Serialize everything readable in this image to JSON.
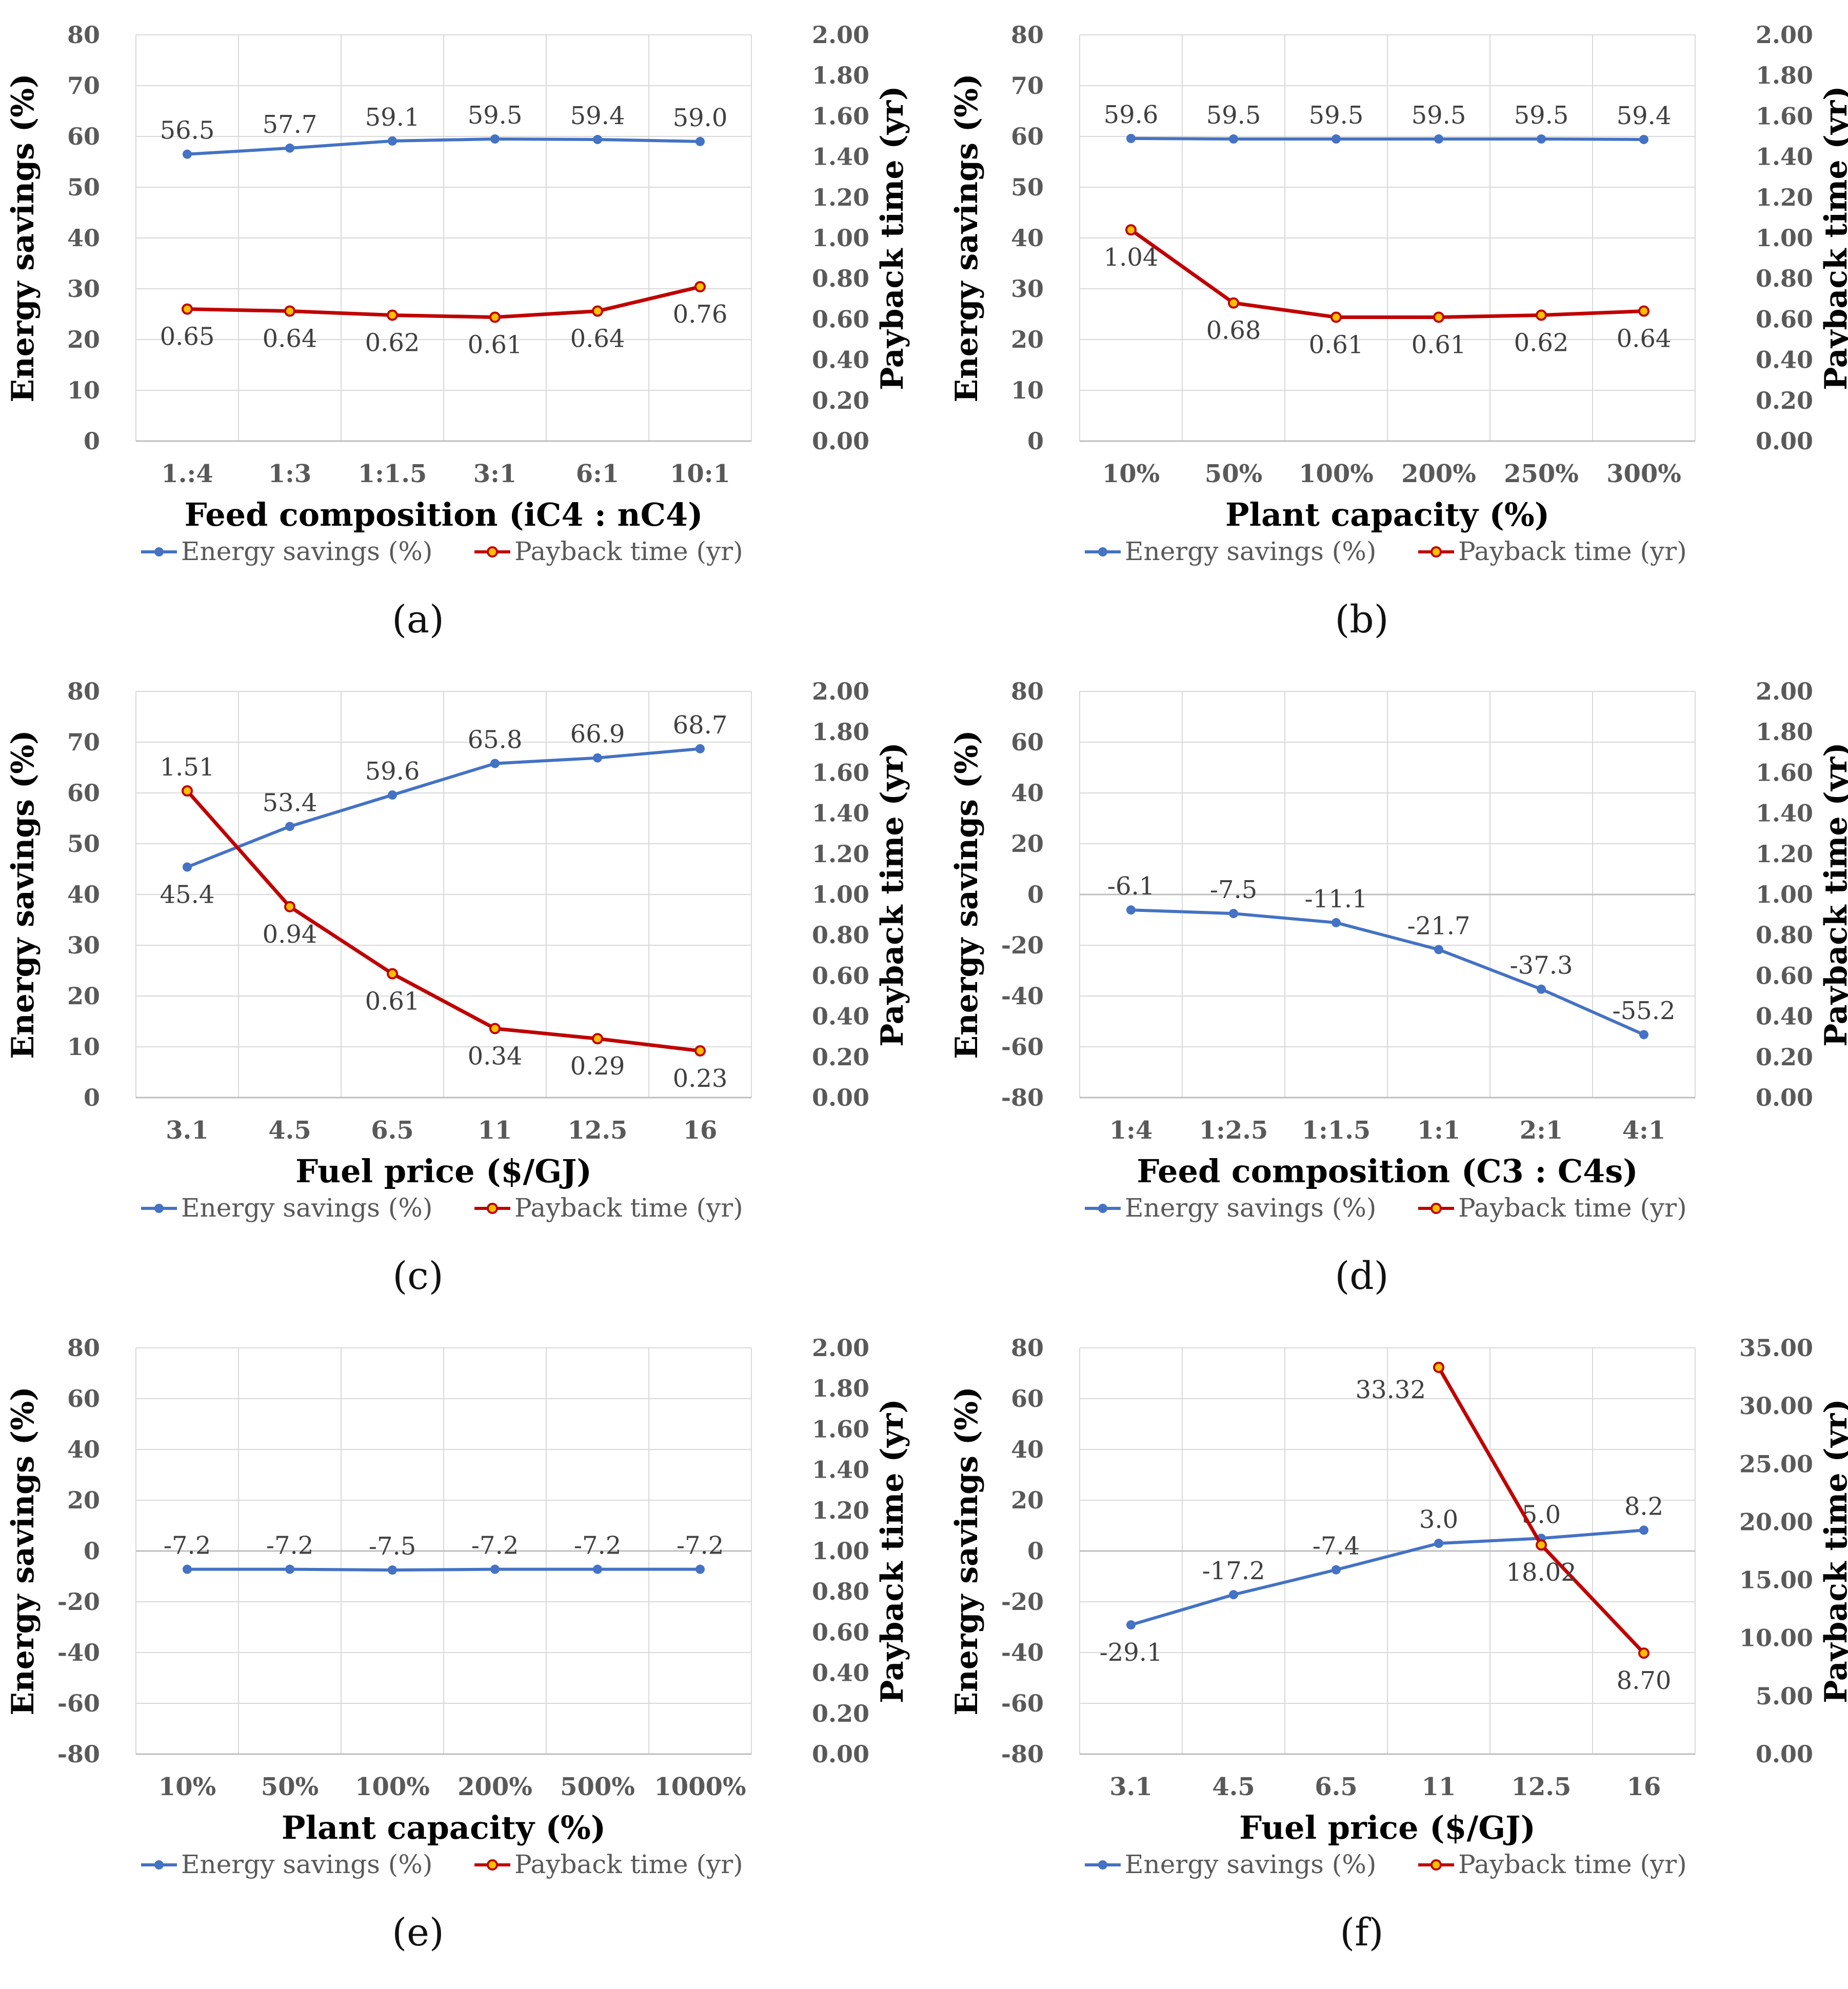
{
  "colors": {
    "energy": "#4472C4",
    "payback": "#C00000",
    "marker_fill": "#FFC000",
    "grid": "#D9D9D9",
    "axis": "#BFBFBF"
  },
  "chart_data": [
    {
      "id": "a",
      "type": "line",
      "panel_label": "(a)",
      "categories": [
        "1.:4",
        "1:3",
        "1:1.5",
        "3:1",
        "6:1",
        "10:1"
      ],
      "xlabel": "Feed composition (iC4 : nC4)",
      "ylabel_left": "Energy savings (%)",
      "ylabel_right": "Payback time (yr)",
      "ylim_left": [
        0,
        80
      ],
      "ticks_left": [
        "0",
        "10",
        "20",
        "30",
        "40",
        "50",
        "60",
        "70",
        "80"
      ],
      "ylim_right": [
        0,
        2
      ],
      "ticks_right": [
        "0.00",
        "0.20",
        "0.40",
        "0.60",
        "0.80",
        "1.00",
        "1.20",
        "1.40",
        "1.60",
        "1.80",
        "2.00"
      ],
      "grid": true,
      "legend_position": "bottom",
      "series": [
        {
          "name": "Energy savings (%)",
          "axis": "left",
          "values": [
            56.5,
            57.7,
            59.1,
            59.5,
            59.4,
            59.0
          ],
          "labels": [
            "56.5",
            "57.7",
            "59.1",
            "59.5",
            "59.4",
            "59.0"
          ],
          "label_pos": "above"
        },
        {
          "name": "Payback time (yr)",
          "axis": "right",
          "values": [
            0.65,
            0.64,
            0.62,
            0.61,
            0.64,
            0.76
          ],
          "labels": [
            "0.65",
            "0.64",
            "0.62",
            "0.61",
            "0.64",
            "0.76"
          ],
          "label_pos": "below"
        }
      ]
    },
    {
      "id": "b",
      "type": "line",
      "panel_label": "(b)",
      "categories": [
        "10%",
        "50%",
        "100%",
        "200%",
        "250%",
        "300%"
      ],
      "xlabel": "Plant capacity (%)",
      "ylabel_left": "Energy savings (%)",
      "ylabel_right": "Payback time (yr)",
      "ylim_left": [
        0,
        80
      ],
      "ticks_left": [
        "0",
        "10",
        "20",
        "30",
        "40",
        "50",
        "60",
        "70",
        "80"
      ],
      "ylim_right": [
        0,
        2
      ],
      "ticks_right": [
        "0.00",
        "0.20",
        "0.40",
        "0.60",
        "0.80",
        "1.00",
        "1.20",
        "1.40",
        "1.60",
        "1.80",
        "2.00"
      ],
      "grid": true,
      "legend_position": "bottom",
      "series": [
        {
          "name": "Energy savings (%)",
          "axis": "left",
          "values": [
            59.6,
            59.5,
            59.5,
            59.5,
            59.5,
            59.4
          ],
          "labels": [
            "59.6",
            "59.5",
            "59.5",
            "59.5",
            "59.5",
            "59.4"
          ],
          "label_pos": "above"
        },
        {
          "name": "Payback time (yr)",
          "axis": "right",
          "values": [
            1.04,
            0.68,
            0.61,
            0.61,
            0.62,
            0.64
          ],
          "labels": [
            "1.04",
            "0.68",
            "0.61",
            "0.61",
            "0.62",
            "0.64"
          ],
          "label_pos": "below"
        }
      ]
    },
    {
      "id": "c",
      "type": "line",
      "panel_label": "(c)",
      "categories": [
        "3.1",
        "4.5",
        "6.5",
        "11",
        "12.5",
        "16"
      ],
      "xlabel": "Fuel price ($/GJ)",
      "ylabel_left": "Energy savings (%)",
      "ylabel_right": "Payback time (yr)",
      "ylim_left": [
        0,
        80
      ],
      "ticks_left": [
        "0",
        "10",
        "20",
        "30",
        "40",
        "50",
        "60",
        "70",
        "80"
      ],
      "ylim_right": [
        0,
        2
      ],
      "ticks_right": [
        "0.00",
        "0.20",
        "0.40",
        "0.60",
        "0.80",
        "1.00",
        "1.20",
        "1.40",
        "1.60",
        "1.80",
        "2.00"
      ],
      "grid": true,
      "legend_position": "bottom",
      "series": [
        {
          "name": "Energy savings (%)",
          "axis": "left",
          "values": [
            45.4,
            53.4,
            59.6,
            65.8,
            66.9,
            68.7
          ],
          "labels": [
            "45.4",
            "53.4",
            "59.6",
            "65.8",
            "66.9",
            "68.7"
          ],
          "label_pos": [
            "below",
            "above",
            "above",
            "above",
            "above",
            "above"
          ]
        },
        {
          "name": "Payback time (yr)",
          "axis": "right",
          "values": [
            1.51,
            0.94,
            0.61,
            0.34,
            0.29,
            0.23
          ],
          "labels": [
            "1.51",
            "0.94",
            "0.61",
            "0.34",
            "0.29",
            "0.23"
          ],
          "label_pos": [
            "above",
            "below",
            "below",
            "below",
            "below",
            "below"
          ]
        }
      ]
    },
    {
      "id": "d",
      "type": "line",
      "panel_label": "(d)",
      "categories": [
        "1:4",
        "1:2.5",
        "1:1.5",
        "1:1",
        "2:1",
        "4:1"
      ],
      "xlabel": "Feed composition (C3 : C4s)",
      "ylabel_left": "Energy savings (%)",
      "ylabel_right": "Payback time (yr)",
      "ylim_left": [
        -80,
        80
      ],
      "ticks_left": [
        "-80",
        "-60",
        "-40",
        "-20",
        "0",
        "20",
        "40",
        "60",
        "80"
      ],
      "ylim_right": [
        0,
        2
      ],
      "ticks_right": [
        "0.00",
        "0.20",
        "0.40",
        "0.60",
        "0.80",
        "1.00",
        "1.20",
        "1.40",
        "1.60",
        "1.80",
        "2.00"
      ],
      "grid": true,
      "legend_position": "bottom",
      "series": [
        {
          "name": "Energy savings (%)",
          "axis": "left",
          "values": [
            -6.1,
            -7.5,
            -11.1,
            -21.7,
            -37.3,
            -55.2
          ],
          "labels": [
            "-6.1",
            "-7.5",
            "-11.1",
            "-21.7",
            "-37.3",
            "-55.2"
          ],
          "label_pos": "above"
        },
        {
          "name": "Payback time (yr)",
          "axis": "right",
          "values": [
            null,
            null,
            null,
            null,
            null,
            null
          ],
          "labels": [],
          "label_pos": "below"
        }
      ]
    },
    {
      "id": "e",
      "type": "line",
      "panel_label": "(e)",
      "categories": [
        "10%",
        "50%",
        "100%",
        "200%",
        "500%",
        "1000%"
      ],
      "xlabel": "Plant capacity (%)",
      "ylabel_left": "Energy savings (%)",
      "ylabel_right": "Payback time (yr)",
      "ylim_left": [
        -80,
        80
      ],
      "ticks_left": [
        "-80",
        "-60",
        "-40",
        "-20",
        "0",
        "20",
        "40",
        "60",
        "80"
      ],
      "ylim_right": [
        0,
        2
      ],
      "ticks_right": [
        "0.00",
        "0.20",
        "0.40",
        "0.60",
        "0.80",
        "1.00",
        "1.20",
        "1.40",
        "1.60",
        "1.80",
        "2.00"
      ],
      "grid": true,
      "legend_position": "bottom",
      "series": [
        {
          "name": "Energy savings (%)",
          "axis": "left",
          "values": [
            -7.2,
            -7.2,
            -7.5,
            -7.2,
            -7.2,
            -7.2
          ],
          "labels": [
            "-7.2",
            "-7.2",
            "-7.5",
            "-7.2",
            "-7.2",
            "-7.2"
          ],
          "label_pos": "above"
        },
        {
          "name": "Payback time (yr)",
          "axis": "right",
          "values": [
            null,
            null,
            null,
            null,
            null,
            null
          ],
          "labels": [],
          "label_pos": "below"
        }
      ]
    },
    {
      "id": "f",
      "type": "line",
      "panel_label": "(f)",
      "categories": [
        "3.1",
        "4.5",
        "6.5",
        "11",
        "12.5",
        "16"
      ],
      "xlabel": "Fuel price ($/GJ)",
      "ylabel_left": "Energy savings (%)",
      "ylabel_right": "Payback time (yr)",
      "ylim_left": [
        -80,
        80
      ],
      "ticks_left": [
        "-80",
        "-60",
        "-40",
        "-20",
        "0",
        "20",
        "40",
        "60",
        "80"
      ],
      "ylim_right": [
        0,
        35
      ],
      "ticks_right": [
        "0.00",
        "5.00",
        "10.00",
        "15.00",
        "20.00",
        "25.00",
        "30.00",
        "35.00"
      ],
      "grid": true,
      "legend_position": "bottom",
      "series": [
        {
          "name": "Energy savings (%)",
          "axis": "left",
          "values": [
            -29.1,
            -17.2,
            -7.4,
            3.0,
            5.0,
            8.2
          ],
          "labels": [
            "-29.1",
            "-17.2",
            "-7.4",
            "3.0",
            "5.0",
            "8.2"
          ],
          "label_pos": [
            "below",
            "above",
            "above",
            "above",
            "above",
            "above"
          ]
        },
        {
          "name": "Payback time (yr)",
          "axis": "right",
          "values": [
            null,
            null,
            null,
            33.32,
            18.02,
            8.7
          ],
          "labels": [
            "",
            "",
            "",
            "33.32",
            "18.02",
            "8.70"
          ],
          "label_pos": [
            "below",
            "below",
            "below",
            "left",
            "below",
            "below"
          ]
        }
      ]
    }
  ]
}
